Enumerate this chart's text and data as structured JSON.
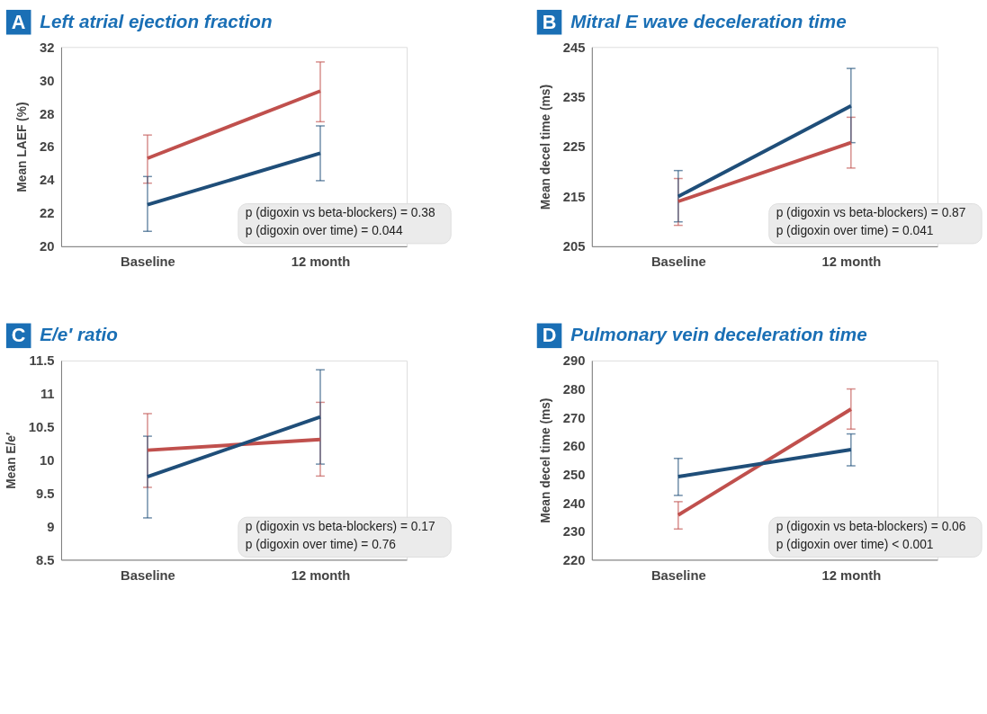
{
  "chart_data": [
    {
      "type": "line",
      "title": "Left atrial ejection fraction",
      "ylabel": "Mean LAEF (%)",
      "categories": [
        "Baseline",
        "12 month"
      ],
      "ylim": [
        20,
        32
      ],
      "yticks": [
        20,
        22,
        24,
        26,
        28,
        30,
        32
      ],
      "grid": false,
      "annotations": [
        "A",
        "p (digoxin vs beta-blockers) = 0.38",
        "p (digoxin over time) = 0.044"
      ],
      "series": [
        {
          "color": "#c0504d",
          "values": [
            25.3,
            29.35
          ],
          "errors": [
            [
              23.8,
              26.7
            ],
            [
              27.5,
              31.1
            ]
          ]
        },
        {
          "color": "#1f4e79",
          "values": [
            22.5,
            25.6
          ],
          "errors": [
            [
              20.9,
              24.2
            ],
            [
              23.95,
              27.25
            ]
          ]
        }
      ]
    },
    {
      "type": "line",
      "title": "Mitral E wave deceleration time",
      "ylabel": "Mean decel time (ms)",
      "categories": [
        "Baseline",
        "12 month"
      ],
      "ylim": [
        205,
        245
      ],
      "yticks": [
        205,
        215,
        225,
        235,
        245
      ],
      "grid": false,
      "annotations": [
        "B",
        "p (digoxin vs beta-blockers) = 0.87",
        "p (digoxin over time) = 0.041"
      ],
      "series": [
        {
          "color": "#c0504d",
          "values": [
            214,
            225.8
          ],
          "errors": [
            [
              209.2,
              218.6
            ],
            [
              220.7,
              230.9
            ]
          ]
        },
        {
          "color": "#1f4e79",
          "values": [
            215,
            233.2
          ],
          "errors": [
            [
              209.9,
              220.2
            ],
            [
              225.8,
              240.7
            ]
          ]
        }
      ]
    },
    {
      "type": "line",
      "title": "E/e′ ratio",
      "ylabel": "Mean E/e′",
      "categories": [
        "Baseline",
        "12 month"
      ],
      "ylim": [
        8.5,
        11.5
      ],
      "yticks": [
        8.5,
        9,
        9.5,
        10,
        10.5,
        11,
        11.5
      ],
      "grid": false,
      "annotations": [
        "C",
        "p (digoxin vs beta-blockers) = 0.17",
        "p (digoxin over time) = 0.76"
      ],
      "series": [
        {
          "color": "#c0504d",
          "values": [
            10.15,
            10.31
          ],
          "errors": [
            [
              9.59,
              10.7
            ],
            [
              9.76,
              10.87
            ]
          ]
        },
        {
          "color": "#1f4e79",
          "values": [
            9.75,
            10.65
          ],
          "errors": [
            [
              9.13,
              10.36
            ],
            [
              9.94,
              11.36
            ]
          ]
        }
      ]
    },
    {
      "type": "line",
      "title": "Pulmonary vein deceleration time",
      "ylabel": "Mean decel time (ms)",
      "categories": [
        "Baseline",
        "12 month"
      ],
      "ylim": [
        220,
        290
      ],
      "yticks": [
        220,
        230,
        240,
        250,
        260,
        270,
        280,
        290
      ],
      "grid": false,
      "annotations": [
        "D",
        "p (digoxin vs beta-blockers) = 0.06",
        "p (digoxin over time) < 0.001"
      ],
      "series": [
        {
          "color": "#c0504d",
          "values": [
            235.7,
            272.9
          ],
          "errors": [
            [
              230.8,
              240.4
            ],
            [
              265.9,
              280
            ]
          ]
        },
        {
          "color": "#1f4e79",
          "values": [
            249.2,
            258.7
          ],
          "errors": [
            [
              242.6,
              255.6
            ],
            [
              253,
              264.2
            ]
          ]
        }
      ]
    }
  ]
}
